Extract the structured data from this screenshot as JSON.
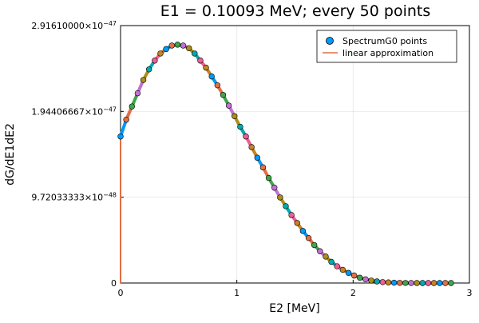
{
  "chart_data": {
    "type": "scatter",
    "title": "E1 = 0.10093 MeV; every 50 points",
    "xlabel": "E2 [MeV]",
    "ylabel": "dG/dE1dE2",
    "xlim": [
      0,
      3
    ],
    "ylim": [
      0,
      2.9161e-47
    ],
    "x_ticks": [
      0,
      1,
      2,
      3
    ],
    "x_tick_labels": [
      "0",
      "1",
      "2",
      "3"
    ],
    "y_ticks": [
      0,
      9.72033333e-48,
      1.944066667e-47,
      2.9161e-47
    ],
    "y_tick_labels": [
      {
        "mantissa": "0",
        "exponent": ""
      },
      {
        "mantissa": "9.72033333×10",
        "exponent": "−48"
      },
      {
        "mantissa": "1.94406667×10",
        "exponent": "−47"
      },
      {
        "mantissa": "2.91610000×10",
        "exponent": "−47"
      }
    ],
    "grid": true,
    "legend_position": "top-right",
    "legend": [
      {
        "label": "SpectrumG0 points",
        "marker": "circle",
        "color": "#009AFA"
      },
      {
        "label": "linear approximation",
        "marker": "line",
        "color": "#E26F46"
      }
    ],
    "segment_colors": [
      "#009AFA",
      "#E26F46",
      "#3EA44E",
      "#C271D2",
      "#AC8E18",
      "#00AAAE",
      "#ED5E93",
      "#C68225"
    ],
    "series": [
      {
        "name": "SpectrumG0 points",
        "x": [
          0.0,
          0.049,
          0.098,
          0.147,
          0.196,
          0.245,
          0.294,
          0.343,
          0.392,
          0.441,
          0.49,
          0.539,
          0.588,
          0.637,
          0.686,
          0.735,
          0.784,
          0.833,
          0.882,
          0.931,
          0.98,
          1.029,
          1.078,
          1.127,
          1.176,
          1.225,
          1.274,
          1.323,
          1.372,
          1.421,
          1.47,
          1.519,
          1.568,
          1.617,
          1.666,
          1.715,
          1.764,
          1.813,
          1.862,
          1.911,
          1.96,
          2.009,
          2.058,
          2.107,
          2.156,
          2.205,
          2.254,
          2.303,
          2.352,
          2.401,
          2.45,
          2.499,
          2.548,
          2.597,
          2.646,
          2.695,
          2.744,
          2.793,
          2.842
        ],
        "y": [
          1.66e-47,
          1.85e-47,
          2e-47,
          2.15e-47,
          2.3e-47,
          2.42e-47,
          2.52e-47,
          2.6e-47,
          2.65e-47,
          2.69e-47,
          2.7e-47,
          2.69e-47,
          2.66e-47,
          2.6e-47,
          2.52e-47,
          2.44e-47,
          2.34e-47,
          2.24e-47,
          2.13e-47,
          2.01e-47,
          1.89e-47,
          1.77e-47,
          1.66e-47,
          1.54e-47,
          1.42e-47,
          1.31e-47,
          1.19e-47,
          1.08e-47,
          9.7e-48,
          8.7e-48,
          7.7e-48,
          6.8e-48,
          5.9e-48,
          5.1e-48,
          4.3e-48,
          3.6e-48,
          3e-48,
          2.4e-48,
          1.9e-48,
          1.5e-48,
          1.15e-48,
          8.5e-49,
          6e-49,
          4.2e-49,
          2.8e-49,
          1.8e-49,
          1.1e-49,
          7e-50,
          4e-50,
          2e-50,
          1e-50,
          5e-51,
          2e-51,
          1e-51,
          0,
          0,
          0,
          0,
          0
        ]
      },
      {
        "name": "linear approximation",
        "note_points": "x=0 vertical rise from 0 to the first point, then piecewise linear through the points",
        "x": [
          0.0,
          0.0
        ],
        "y": [
          0.0,
          1.66e-47
        ]
      }
    ]
  }
}
